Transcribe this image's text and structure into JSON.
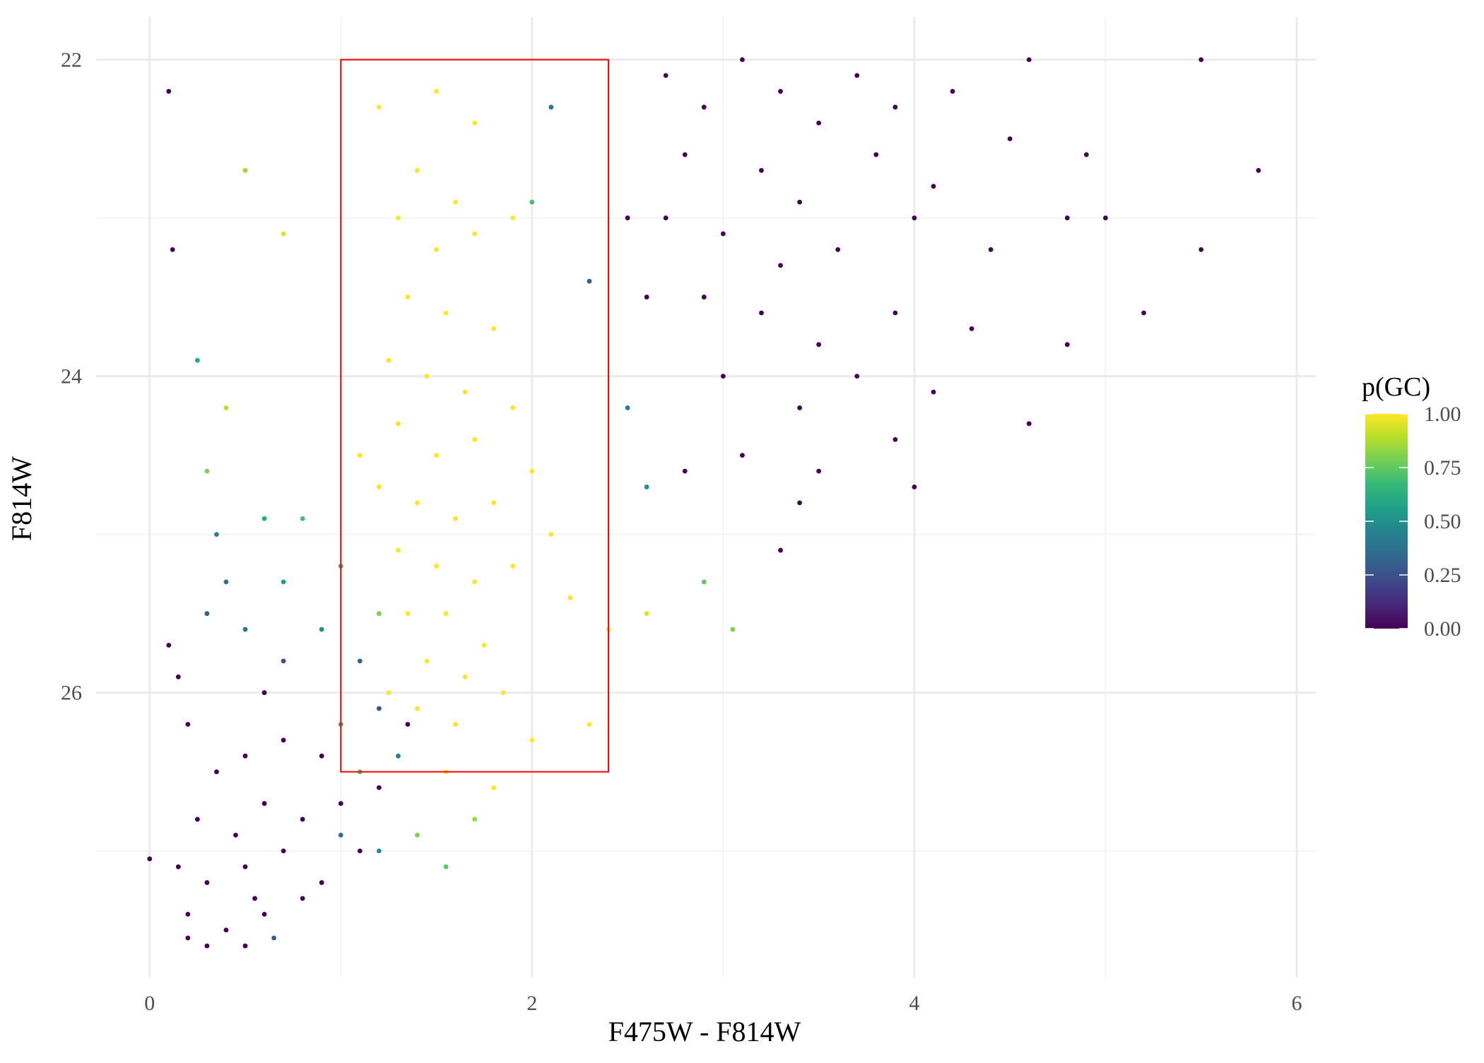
{
  "chart_data": {
    "type": "scatter",
    "x_label": "F475W - F814W",
    "y_label": "F814W",
    "xlim": [
      -0.28,
      6.1
    ],
    "ylim": [
      21.73,
      27.8
    ],
    "y_reversed": true,
    "xticks": [
      0,
      2,
      4,
      6
    ],
    "yticks": [
      22,
      24,
      26
    ],
    "x_minor": [
      1,
      3,
      5
    ],
    "y_minor": [
      23,
      25,
      27
    ],
    "grid": true,
    "colormap": "viridis",
    "x": [
      2.7,
      2.9,
      3.1,
      3.3,
      3.5,
      3.7,
      3.9,
      4.2,
      4.6,
      5.5,
      2.8,
      3.2,
      3.4,
      3.8,
      4.1,
      4.5,
      4.9,
      5.8,
      2.7,
      3.0,
      3.3,
      3.6,
      4.0,
      4.4,
      4.8,
      5.0,
      2.9,
      3.2,
      3.5,
      3.9,
      4.3,
      4.8,
      5.2,
      3.0,
      3.4,
      3.7,
      4.1,
      4.6,
      3.1,
      3.5,
      3.9,
      4.0,
      2.8,
      3.4,
      3.3,
      2.5,
      2.6,
      5.5,
      0.1,
      0.12,
      1.2,
      1.5,
      1.7,
      1.4,
      1.6,
      1.3,
      1.5,
      1.7,
      1.9,
      1.35,
      1.55,
      1.8,
      1.25,
      1.45,
      1.65,
      1.9,
      1.3,
      1.5,
      1.7,
      2.0,
      1.2,
      1.4,
      1.6,
      1.8,
      2.1,
      1.3,
      1.5,
      1.7,
      1.9,
      2.2,
      1.35,
      1.55,
      1.75,
      1.45,
      1.65,
      1.85,
      1.4,
      1.6,
      2.0,
      1.55,
      1.8,
      2.4,
      2.6,
      0.5,
      0.7,
      0.4,
      2.3,
      1.25,
      1.7,
      1.1,
      0.2,
      0.35,
      0.5,
      0.7,
      0.9,
      0.25,
      0.45,
      0.6,
      0.8,
      1.0,
      0.15,
      0.3,
      0.5,
      0.7,
      0.9,
      1.1,
      0.2,
      0.4,
      0.6,
      0.8,
      0.3,
      0.5,
      0.2,
      0.0,
      0.1,
      0.15,
      0.6,
      1.2,
      1.35,
      0.55,
      0.3,
      0.5,
      0.7,
      0.9,
      1.1,
      1.2,
      1.3,
      1.0,
      0.6,
      0.8,
      0.4,
      1.0,
      1.2,
      1.1,
      1.4,
      1.2,
      1.0,
      0.7,
      0.3,
      0.25,
      2.1,
      2.3,
      2.5,
      2.6,
      2.9,
      3.05,
      2.0,
      0.65,
      0.35,
      1.55
    ],
    "y": [
      22.1,
      22.3,
      22.0,
      22.2,
      22.4,
      22.1,
      22.3,
      22.2,
      22.0,
      22.0,
      22.6,
      22.7,
      22.9,
      22.6,
      22.8,
      22.5,
      22.6,
      22.7,
      23.0,
      23.1,
      23.3,
      23.2,
      23.0,
      23.2,
      23.0,
      23.0,
      23.5,
      23.6,
      23.8,
      23.6,
      23.7,
      23.8,
      23.6,
      24.0,
      24.2,
      24.0,
      24.1,
      24.3,
      24.5,
      24.6,
      24.4,
      24.7,
      24.6,
      24.8,
      25.1,
      23.0,
      23.5,
      23.2,
      22.2,
      23.2,
      22.3,
      22.2,
      22.4,
      22.7,
      22.9,
      23.0,
      23.2,
      23.1,
      23.0,
      23.5,
      23.6,
      23.7,
      23.9,
      24.0,
      24.1,
      24.2,
      24.3,
      24.5,
      24.4,
      24.6,
      24.7,
      24.8,
      24.9,
      24.8,
      25.0,
      25.1,
      25.2,
      25.3,
      25.2,
      25.4,
      25.5,
      25.5,
      25.7,
      25.8,
      25.9,
      26.0,
      26.1,
      26.2,
      26.3,
      26.5,
      26.6,
      25.6,
      25.5,
      22.7,
      23.1,
      24.2,
      26.2,
      26.0,
      26.8,
      24.5,
      26.2,
      26.5,
      26.4,
      26.3,
      26.4,
      26.8,
      26.9,
      26.7,
      26.8,
      26.7,
      27.1,
      27.2,
      27.1,
      27.0,
      27.2,
      27.0,
      27.4,
      27.5,
      27.4,
      27.3,
      27.6,
      27.6,
      27.55,
      27.05,
      25.7,
      25.9,
      26.0,
      26.6,
      26.2,
      27.3,
      25.5,
      25.6,
      25.3,
      25.6,
      25.8,
      26.1,
      26.4,
      26.2,
      24.9,
      24.9,
      25.3,
      25.2,
      25.5,
      26.5,
      26.9,
      27.0,
      26.9,
      25.8,
      24.6,
      23.9,
      22.3,
      23.4,
      24.2,
      24.7,
      25.3,
      25.6,
      22.9,
      27.55,
      25.0,
      27.1
    ],
    "p": [
      0,
      0,
      0,
      0,
      0,
      0,
      0,
      0,
      0,
      0,
      0,
      0,
      0,
      0,
      0,
      0,
      0,
      0,
      0,
      0,
      0,
      0,
      0,
      0,
      0,
      0,
      0,
      0,
      0,
      0,
      0,
      0,
      0,
      0,
      0,
      0,
      0,
      0,
      0,
      0,
      0,
      0,
      0,
      0,
      0,
      0,
      0,
      0,
      0,
      0,
      1,
      1,
      1,
      1,
      1,
      1,
      1,
      1,
      1,
      1,
      1,
      1,
      1,
      1,
      1,
      1,
      1,
      1,
      1,
      1,
      1,
      1,
      1,
      1,
      1,
      1,
      1,
      1,
      1,
      1,
      1,
      1,
      1,
      1,
      1,
      1,
      1,
      1,
      1,
      1,
      1,
      1,
      0.95,
      0.85,
      0.95,
      0.9,
      1,
      1,
      0.85,
      1,
      0,
      0,
      0,
      0,
      0,
      0,
      0,
      0,
      0,
      0,
      0,
      0,
      0,
      0,
      0,
      0,
      0,
      0,
      0,
      0,
      0,
      0,
      0,
      0,
      0,
      0,
      0,
      0,
      0,
      0,
      0.3,
      0.4,
      0.55,
      0.5,
      0.3,
      0.25,
      0.45,
      0.6,
      0.6,
      0.7,
      0.35,
      0.65,
      0.8,
      0.7,
      0.8,
      0.5,
      0.35,
      0.25,
      0.8,
      0.6,
      0.4,
      0.3,
      0.4,
      0.5,
      0.75,
      0.8,
      0.7,
      0.3,
      0.45,
      0.75
    ],
    "highlight_box": {
      "xlim": [
        1,
        2.4
      ],
      "ylim": [
        22,
        26.5
      ],
      "color": "#ff0000"
    },
    "colorbar": {
      "title": "p(GC)",
      "lim": [
        0,
        1
      ],
      "ticks": [
        {
          "value": 0,
          "label": "0.00"
        },
        {
          "value": 0.25,
          "label": "0.25"
        },
        {
          "value": 0.5,
          "label": "0.50"
        },
        {
          "value": 0.75,
          "label": "0.75"
        },
        {
          "value": 1,
          "label": "1.00"
        }
      ]
    }
  }
}
